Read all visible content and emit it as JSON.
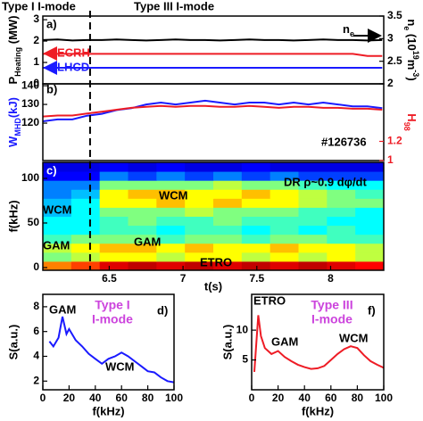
{
  "figure": {
    "labels": [
      "Type I I-mode",
      "Type III I-mode"
    ],
    "transition_t": 6.37
  },
  "chart_data": [
    {
      "type": "line",
      "panel_label": "a)",
      "x": [
        6.05,
        6.15,
        6.25,
        6.35,
        6.45,
        6.55,
        6.65,
        6.75,
        6.85,
        6.95,
        7.05,
        7.15,
        7.25,
        7.35,
        7.45,
        7.55,
        7.65,
        7.75,
        7.85,
        7.95,
        8.05,
        8.15,
        8.25,
        8.35
      ],
      "xlim": [
        6.05,
        8.36
      ],
      "ylim": [
        0,
        3.17
      ],
      "yticks": [
        0,
        1,
        2,
        3
      ],
      "y2lim": [
        2,
        3.5
      ],
      "y2ticks": [
        2,
        2.5,
        3,
        3.5
      ],
      "ylabel": [
        {
          "text": "P"
        },
        {
          "text": "Heating",
          "sub": true
        },
        {
          "text": " (MW)"
        }
      ],
      "y2label": [
        {
          "text": "n"
        },
        {
          "text": "e",
          "sub": true
        },
        {
          "text": " (10"
        },
        {
          "text": "19",
          "sup": true
        },
        {
          "text": "m"
        },
        {
          "text": "-3",
          "sup": true
        },
        {
          "text": ")"
        }
      ],
      "series": [
        {
          "color": "#000000",
          "axis": "y2",
          "values": [
            2.97,
            2.98,
            2.96,
            2.97,
            2.97,
            2.98,
            2.97,
            2.96,
            2.97,
            2.98,
            2.97,
            2.97,
            2.96,
            2.97,
            2.98,
            2.97,
            2.97,
            2.96,
            2.97,
            2.98,
            2.97,
            2.97,
            2.96,
            2.97
          ]
        },
        {
          "color": "#ee1c25",
          "values": [
            1.4,
            1.4,
            1.4,
            1.4,
            1.4,
            1.4,
            1.4,
            1.4,
            1.4,
            1.4,
            1.4,
            1.4,
            1.4,
            1.4,
            1.4,
            1.4,
            1.4,
            1.4,
            1.4,
            1.4,
            1.4,
            1.4,
            1.3,
            1.3
          ]
        },
        {
          "color": "#1a1aff",
          "values": [
            0.75,
            0.75,
            0.75,
            0.75,
            0.75,
            0.75,
            0.75,
            0.75,
            0.75,
            0.75,
            0.75,
            0.75,
            0.75,
            0.75,
            0.75,
            0.75,
            0.75,
            0.75,
            0.75,
            0.75,
            0.75,
            0.75,
            0.75,
            0.75
          ]
        }
      ],
      "annotations": [
        {
          "text": "ECRH",
          "color": "#ee1c25"
        },
        {
          "text": "LHCD",
          "color": "#1a1aff"
        },
        {
          "parts": [
            {
              "text": "n"
            },
            {
              "text": "e",
              "sub": true
            }
          ],
          "color": "#000000"
        }
      ]
    },
    {
      "type": "line",
      "panel_label": "b)",
      "x": [
        6.05,
        6.15,
        6.25,
        6.35,
        6.45,
        6.55,
        6.65,
        6.75,
        6.85,
        6.95,
        7.05,
        7.15,
        7.25,
        7.35,
        7.45,
        7.55,
        7.65,
        7.75,
        7.85,
        7.95,
        8.05,
        8.15,
        8.25,
        8.35
      ],
      "xlim": [
        6.05,
        8.36
      ],
      "ylim": [
        100,
        141
      ],
      "yticks": [
        120,
        130,
        140
      ],
      "y2lim": [
        1,
        1.8
      ],
      "y2ticks": [
        1,
        1.2
      ],
      "y2color": "#ee1c25",
      "ylabel_color": "#1a1aff",
      "ylabel": [
        {
          "text": "W"
        },
        {
          "text": "MHD",
          "sub": true
        },
        {
          "text": "(kJ)"
        }
      ],
      "y2label": [
        {
          "text": "H"
        },
        {
          "text": "98",
          "sub": true
        }
      ],
      "series": [
        {
          "color": "#1a1aff",
          "values": [
            121,
            122,
            122,
            124,
            125,
            127,
            128,
            130,
            131,
            130,
            131,
            132,
            131,
            130,
            131,
            131,
            130,
            131,
            130,
            131,
            130,
            129,
            129,
            128
          ]
        },
        {
          "color": "#ee1c25",
          "axis": "y2",
          "values": [
            1.46,
            1.47,
            1.47,
            1.49,
            1.51,
            1.53,
            1.55,
            1.56,
            1.57,
            1.56,
            1.57,
            1.57,
            1.56,
            1.56,
            1.57,
            1.56,
            1.55,
            1.56,
            1.56,
            1.55,
            1.55,
            1.54,
            1.54,
            1.53
          ]
        }
      ],
      "annotations": [
        {
          "text": "#126736",
          "color": "#000000"
        }
      ]
    },
    {
      "type": "heatmap",
      "panel_label": "c)",
      "panel_label_color": "#ffffff",
      "xlim": [
        6.05,
        8.36
      ],
      "xticks": [
        6.5,
        7,
        7.5,
        8
      ],
      "xlabel": "t(s)",
      "ylim": [
        -3,
        118
      ],
      "yticks": [
        0,
        50,
        100
      ],
      "ylabel": "f(kHz)",
      "x_edges": [
        6.05,
        6.2425,
        6.435,
        6.6275,
        6.82,
        7.0125,
        7.205,
        7.3975,
        7.59,
        7.7825,
        7.975,
        8.1675,
        8.36
      ],
      "y_edges": [
        -3,
        7.08,
        17.17,
        27.25,
        37.33,
        47.42,
        57.5,
        67.58,
        77.67,
        87.75,
        97.83,
        107.92,
        118
      ],
      "zlim": [
        0,
        1
      ],
      "colorscale": [
        "#00008f",
        "#0000ff",
        "#00ffff",
        "#ffff00",
        "#ff0000",
        "#800000"
      ],
      "z": [
        [
          0.7,
          0.75,
          0.85,
          0.9,
          0.85,
          0.9,
          0.85,
          0.9,
          0.85,
          0.9,
          0.85,
          0.8
        ],
        [
          0.5,
          0.55,
          0.6,
          0.6,
          0.55,
          0.6,
          0.6,
          0.55,
          0.6,
          0.55,
          0.6,
          0.55
        ],
        [
          0.55,
          0.6,
          0.65,
          0.65,
          0.6,
          0.65,
          0.6,
          0.6,
          0.65,
          0.6,
          0.6,
          0.55
        ],
        [
          0.45,
          0.5,
          0.5,
          0.5,
          0.45,
          0.5,
          0.5,
          0.45,
          0.5,
          0.5,
          0.45,
          0.45
        ],
        [
          0.4,
          0.4,
          0.45,
          0.45,
          0.4,
          0.45,
          0.45,
          0.4,
          0.45,
          0.4,
          0.45,
          0.4
        ],
        [
          0.4,
          0.4,
          0.45,
          0.5,
          0.45,
          0.45,
          0.5,
          0.45,
          0.45,
          0.45,
          0.4,
          0.4
        ],
        [
          0.35,
          0.4,
          0.5,
          0.5,
          0.5,
          0.55,
          0.5,
          0.5,
          0.5,
          0.45,
          0.45,
          0.4
        ],
        [
          0.35,
          0.4,
          0.6,
          0.6,
          0.65,
          0.6,
          0.65,
          0.6,
          0.6,
          0.55,
          0.5,
          0.5
        ],
        [
          0.3,
          0.35,
          0.6,
          0.65,
          0.65,
          0.6,
          0.6,
          0.65,
          0.6,
          0.55,
          0.5,
          0.45
        ],
        [
          0.3,
          0.3,
          0.5,
          0.5,
          0.5,
          0.5,
          0.55,
          0.5,
          0.5,
          0.45,
          0.4,
          0.4
        ],
        [
          0.2,
          0.2,
          0.3,
          0.25,
          0.3,
          0.25,
          0.3,
          0.25,
          0.3,
          0.25,
          0.25,
          0.25
        ],
        [
          0.15,
          0.15,
          0.2,
          0.15,
          0.2,
          0.15,
          0.15,
          0.2,
          0.15,
          0.15,
          0.15,
          0.15
        ]
      ],
      "annotations": [
        {
          "text": "DR ρ~0.9  dφ/dt",
          "color": "#000000"
        },
        {
          "text": "WCM",
          "color": "#000000"
        },
        {
          "text": "WCM",
          "color": "#000000"
        },
        {
          "text": "GAM",
          "color": "#000000"
        },
        {
          "text": "GAM",
          "color": "#000000"
        },
        {
          "text": "ETRO",
          "color": "#000000"
        }
      ]
    },
    {
      "type": "line",
      "panel_label": "d)",
      "x": [
        5,
        8,
        12,
        15,
        18,
        20,
        25,
        30,
        35,
        40,
        45,
        50,
        55,
        60,
        65,
        70,
        75,
        80,
        85,
        90,
        95,
        100
      ],
      "xlim": [
        0,
        100
      ],
      "xticks": [
        0,
        20,
        40,
        60,
        80,
        100
      ],
      "xlabel": "f(kHz)",
      "ylim": [
        1.3,
        9
      ],
      "yticks": [
        2,
        4,
        6,
        8
      ],
      "ylabel": "S(a.u.)",
      "series": [
        {
          "color": "#1a1aff",
          "values": [
            5.2,
            4.8,
            5.5,
            7.2,
            5.8,
            6.2,
            5.3,
            4.8,
            4.2,
            3.8,
            3.4,
            3.8,
            4.0,
            4.3,
            4.0,
            3.6,
            3.2,
            2.8,
            2.7,
            2.3,
            2.0,
            1.9
          ]
        }
      ],
      "annotations": [
        {
          "text": "GAM",
          "color": "#000000"
        },
        {
          "text": "WCM",
          "color": "#000000"
        },
        {
          "text": "Type I",
          "color": "#cc44dd"
        },
        {
          "text": "I-mode",
          "color": "#cc44dd"
        }
      ]
    },
    {
      "type": "line",
      "panel_label": "f)",
      "x": [
        2,
        5,
        7,
        10,
        15,
        20,
        25,
        30,
        35,
        40,
        45,
        50,
        55,
        60,
        65,
        70,
        75,
        80,
        85,
        90,
        95,
        100
      ],
      "xlim": [
        0,
        100
      ],
      "xticks": [
        0,
        20,
        40,
        60,
        80,
        100
      ],
      "xlabel": "f(kHz)",
      "ylim": [
        0,
        16
      ],
      "yticks": [
        5,
        10
      ],
      "ylabel": "S(a.u.)",
      "series": [
        {
          "color": "#ee1c25",
          "values": [
            3,
            12.5,
            9,
            7,
            6,
            6.5,
            5.5,
            4.8,
            4.2,
            3.8,
            3.5,
            3.6,
            4.0,
            5,
            6,
            6.8,
            7.3,
            7,
            5.8,
            4.8,
            4.2,
            3.7
          ]
        }
      ],
      "annotations": [
        {
          "text": "ETRO",
          "color": "#000000"
        },
        {
          "text": "GAM",
          "color": "#000000"
        },
        {
          "text": "WCM",
          "color": "#000000"
        },
        {
          "text": "Type III",
          "color": "#cc44dd"
        },
        {
          "text": "I-mode",
          "color": "#cc44dd"
        }
      ]
    }
  ]
}
